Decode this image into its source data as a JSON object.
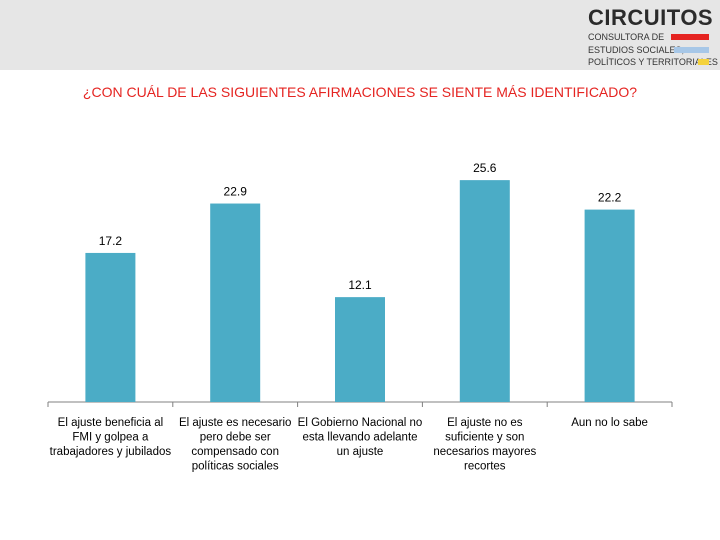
{
  "header": {
    "logo_brand": "CIRCUITOS",
    "logo_line1": "CONSULTORA DE",
    "logo_line2": "ESTUDIOS SOCIALES,",
    "logo_line3": "POLÍTICOS Y TERRITORIALES",
    "logo_colors": [
      "#e52421",
      "#a7c7e7",
      "#f4d23c"
    ]
  },
  "chart_data": {
    "type": "bar",
    "title": "¿CON CUÁL DE LAS SIGUIENTES AFIRMACIONES SE SIENTE MÁS IDENTIFICADO?",
    "categories": [
      [
        "El ajuste beneficia al",
        "FMI y golpea a",
        "trabajadores y jubilados"
      ],
      [
        "El ajuste es necesario",
        "pero debe ser",
        "compensado con",
        "políticas sociales"
      ],
      [
        "El Gobierno Nacional no",
        "esta llevando adelante",
        "un ajuste"
      ],
      [
        "El ajuste no es",
        "suficiente y son",
        "necesarios mayores",
        "recortes"
      ],
      [
        "Aun no lo sabe"
      ]
    ],
    "values": [
      17.2,
      22.9,
      12.1,
      25.6,
      22.2
    ],
    "data_labels": [
      "17.2",
      "22.9",
      "12.1",
      "25.6",
      "22.2"
    ],
    "ylim": [
      0,
      30
    ],
    "grid": false,
    "legend": "none",
    "bar_color": "#4bacc6",
    "title_color": "#e52421"
  }
}
